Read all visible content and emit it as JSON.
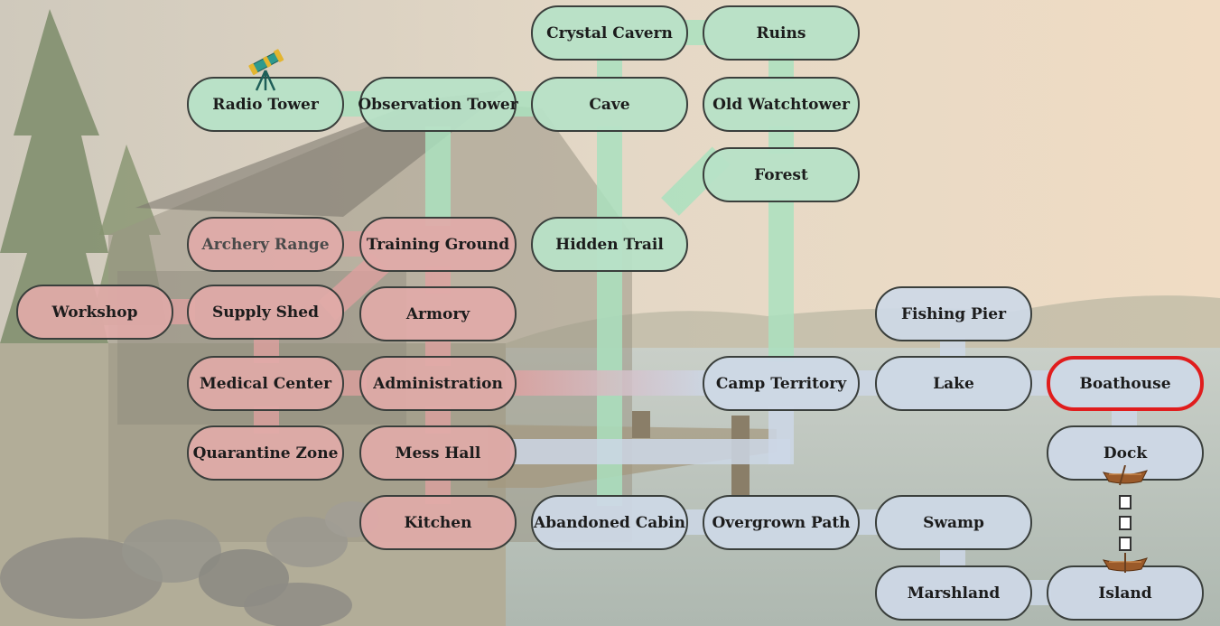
{
  "map": {
    "colors": {
      "green_area": "#b7e2c7",
      "red_area": "#e1aaa8",
      "blue_area": "#ced8e6",
      "selected_border": "#e01d1d"
    },
    "selected_location": "Boathouse",
    "nodes": {
      "crystal_cavern": "Crystal Cavern",
      "ruins": "Ruins",
      "radio_tower": "Radio Tower",
      "observation_tower": "Observation Tower",
      "cave": "Cave",
      "old_watchtower": "Old Watchtower",
      "forest": "Forest",
      "archery_range": "Archery Range",
      "training_ground": "Training Ground",
      "hidden_trail": "Hidden Trail",
      "workshop": "Workshop",
      "supply_shed": "Supply Shed",
      "armory": "Armory",
      "fishing_pier": "Fishing Pier",
      "medical_center": "Medical Center",
      "administration": "Administration",
      "camp_territory": "Camp Territory",
      "lake": "Lake",
      "boathouse": "Boathouse",
      "quarantine_zone": "Quarantine Zone",
      "mess_hall": "Mess Hall",
      "dock": "Dock",
      "kitchen": "Kitchen",
      "abandoned_cabin": "Abandoned Cabin",
      "overgrown_path": "Overgrown Path",
      "swamp": "Swamp",
      "marshland": "Marshland",
      "island": "Island"
    },
    "icons": {
      "radio_tower": "telescope-icon",
      "dock": "rowboat-icon",
      "island": "rowboat-icon"
    }
  }
}
